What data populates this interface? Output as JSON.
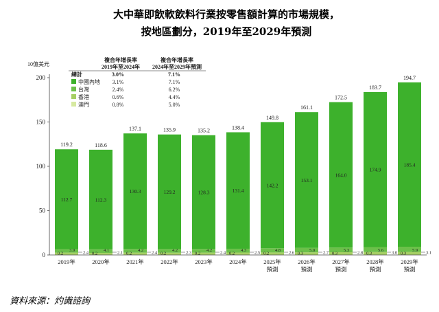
{
  "title_line1": "大中華即飲軟飲料行業按零售額計算的市場規模，",
  "title_line2": "按地區劃分，2019年至2029年預測",
  "unit_label": "10億美元",
  "source": "資料來源：灼識諮詢",
  "colors": {
    "mainland": "#3db12c",
    "taiwan": "#6cc04a",
    "hongkong": "#a6cf64",
    "macau": "#d6e9a0",
    "axis": "#444444"
  },
  "cagr_table": {
    "header1_line1": "複合年增長率",
    "header1_line2": "2019年至2024年",
    "header2_line1": "複合年增長率",
    "header2_line2": "2024年至2029年預測",
    "rows": [
      {
        "label": "總計",
        "v1": "3.0%",
        "v2": "7.1%",
        "bold": true
      },
      {
        "label": "中國內地",
        "v1": "3.1%",
        "v2": "7.1%",
        "color": "#3db12c"
      },
      {
        "label": "台灣",
        "v1": "2.4%",
        "v2": "6.2%",
        "color": "#6cc04a"
      },
      {
        "label": "香港",
        "v1": "0.6%",
        "v2": "4.4%",
        "color": "#a6cf64"
      },
      {
        "label": "澳門",
        "v1": "0.8%",
        "v2": "5.0%",
        "color": "#d6e9a0"
      }
    ]
  },
  "chart_data": {
    "type": "bar",
    "stacked": true,
    "ylim": [
      0,
      200
    ],
    "yticks": [
      0,
      50,
      100,
      150,
      200
    ],
    "ylabel": "10億美元",
    "categories": [
      "2019年",
      "2020年",
      "2021年",
      "2022年",
      "2023年",
      "2024年",
      "2025年",
      "2026年",
      "2027年",
      "2028年",
      "2029年"
    ],
    "category_sublabels": [
      "",
      "",
      "",
      "",
      "",
      "",
      "預測",
      "預測",
      "預測",
      "預測",
      "預測"
    ],
    "totals": [
      "119.2",
      "118.6",
      "137.1",
      "135.9",
      "135.2",
      "138.4",
      "149.8",
      "161.1",
      "172.5",
      "183.7",
      "194.7"
    ],
    "series": [
      {
        "name": "澳門",
        "values": [
          0.2,
          0.2,
          0.2,
          0.2,
          0.2,
          0.2,
          0.2,
          0.3,
          0.3,
          0.3,
          0.3
        ],
        "labels": [
          "0.2",
          "0.2",
          "0.2",
          "0.2",
          "0.2",
          "0.2",
          "0.2",
          "0.3",
          "0.3",
          "0.3",
          "0.3"
        ]
      },
      {
        "name": "香港",
        "values": [
          2.4,
          2.1,
          2.4,
          2.3,
          2.4,
          2.5,
          2.6,
          2.7,
          2.8,
          3.0,
          3.1
        ],
        "labels": [
          "2.4",
          "2.1",
          "2.4",
          "2.3",
          "2.4",
          "2.5",
          "2.6",
          "2.7",
          "2.8",
          "3.0",
          "3.1"
        ]
      },
      {
        "name": "台灣",
        "values": [
          3.9,
          4.1,
          4.2,
          4.2,
          4.2,
          4.3,
          4.8,
          5.0,
          5.3,
          5.6,
          5.9
        ],
        "labels": [
          "3.9",
          "4.1",
          "4.2",
          "4.2",
          "4.2",
          "4.3",
          "4.8",
          "5.0",
          "5.3",
          "5.6",
          "5.9"
        ]
      },
      {
        "name": "中國內地",
        "values": [
          112.7,
          112.3,
          130.3,
          129.2,
          128.3,
          131.4,
          142.2,
          153.1,
          164.0,
          174.9,
          185.4
        ],
        "labels": [
          "112.7",
          "112.3",
          "130.3",
          "129.2",
          "128.3",
          "131.4",
          "142.2",
          "153.1",
          "164.0",
          "174.9",
          "185.4"
        ]
      }
    ]
  }
}
